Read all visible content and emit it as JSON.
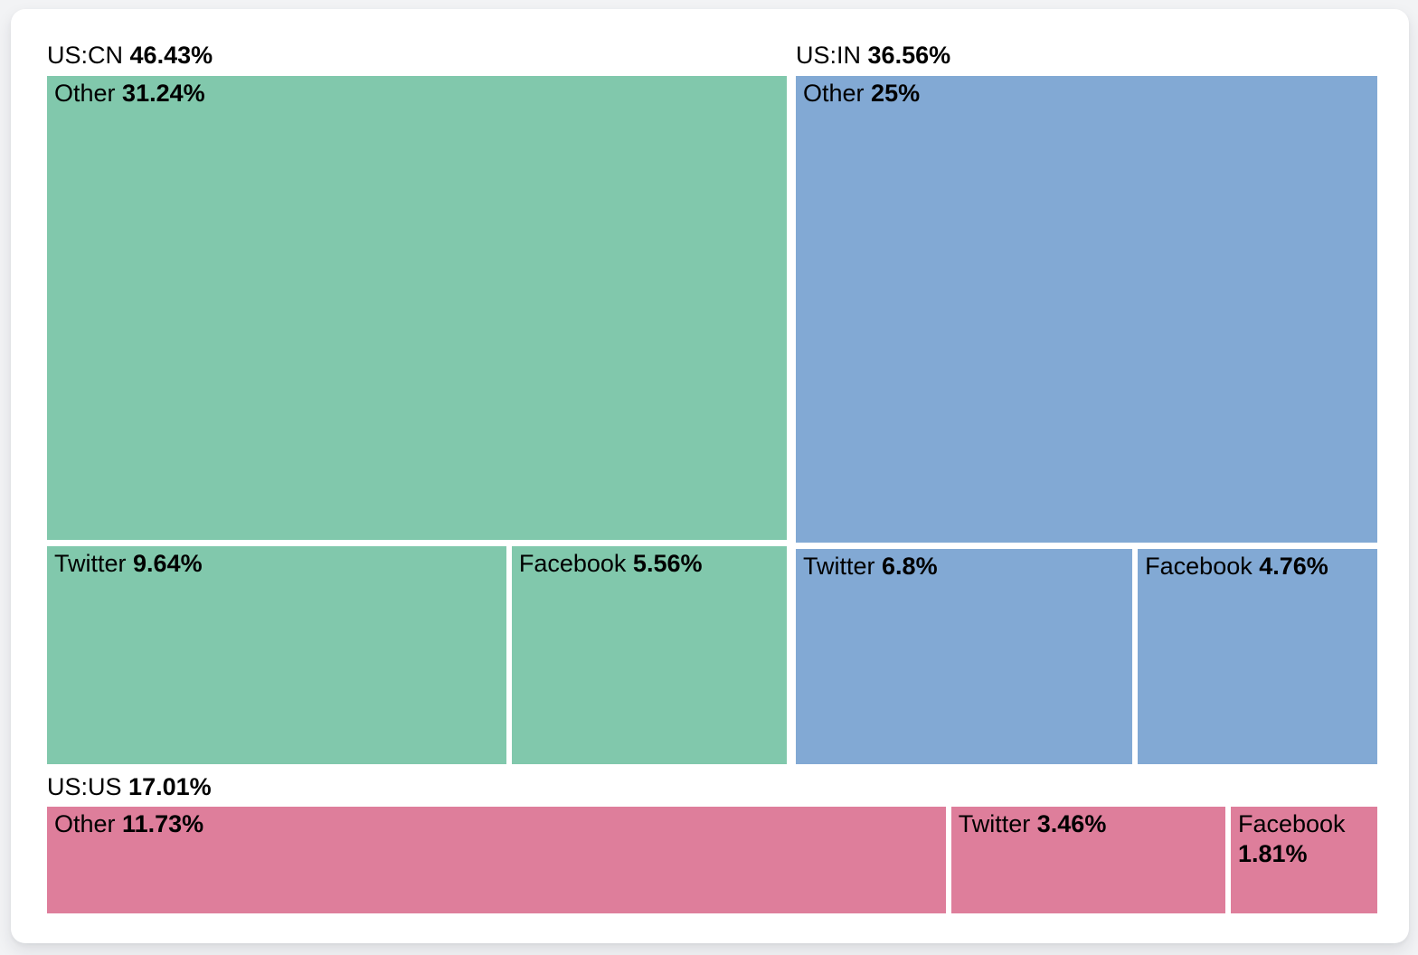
{
  "chart_data": {
    "type": "treemap",
    "value_unit": "%",
    "legend_position": "none",
    "groups": [
      {
        "label": "US:CN",
        "value": 46.43,
        "value_label": "46.43%",
        "color": "#81c8ac",
        "children": [
          {
            "label": "Other",
            "value": 31.24,
            "value_label": "31.24%"
          },
          {
            "label": "Twitter",
            "value": 9.64,
            "value_label": "9.64%"
          },
          {
            "label": "Facebook",
            "value": 5.56,
            "value_label": "5.56%"
          }
        ]
      },
      {
        "label": "US:IN",
        "value": 36.56,
        "value_label": "36.56%",
        "color": "#82a9d4",
        "children": [
          {
            "label": "Other",
            "value": 25,
            "value_label": "25%"
          },
          {
            "label": "Twitter",
            "value": 6.8,
            "value_label": "6.8%"
          },
          {
            "label": "Facebook",
            "value": 4.76,
            "value_label": "4.76%"
          }
        ]
      },
      {
        "label": "US:US",
        "value": 17.01,
        "value_label": "17.01%",
        "color": "#de7e9b",
        "children": [
          {
            "label": "Other",
            "value": 11.73,
            "value_label": "11.73%"
          },
          {
            "label": "Twitter",
            "value": 3.46,
            "value_label": "3.46%"
          },
          {
            "label": "Facebook",
            "value": 1.81,
            "value_label": "1.81%"
          }
        ]
      }
    ]
  }
}
